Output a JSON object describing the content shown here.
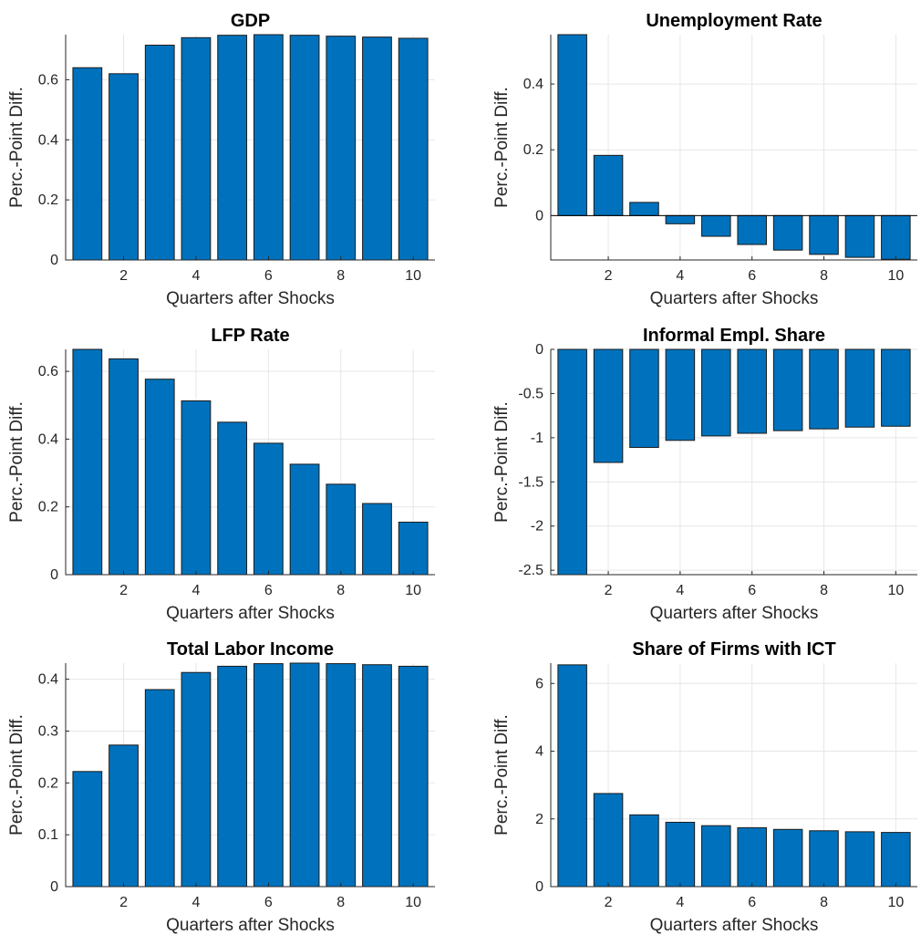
{
  "chart_data": [
    {
      "type": "bar",
      "title": "GDP",
      "xlabel": "Quarters after Shocks",
      "ylabel": "Perc.-Point Diff.",
      "x": [
        1,
        2,
        3,
        4,
        5,
        6,
        7,
        8,
        9,
        10
      ],
      "values": [
        0.64,
        0.62,
        0.715,
        0.74,
        0.748,
        0.75,
        0.748,
        0.745,
        0.742,
        0.738
      ],
      "xlim": [
        0.4,
        10.6
      ],
      "ylim": [
        0,
        0.75
      ],
      "xticks": [
        2,
        4,
        6,
        8,
        10
      ],
      "yticks": [
        0,
        0.2,
        0.4,
        0.6
      ],
      "ytick_labels": [
        "0",
        "0.2",
        "0.4",
        "0.6"
      ],
      "grid": true,
      "bar_color": "#0072bd"
    },
    {
      "type": "bar",
      "title": "Unemployment Rate",
      "xlabel": "Quarters after Shocks",
      "ylabel": "Perc.-Point Diff.",
      "x": [
        1,
        2,
        3,
        4,
        5,
        6,
        7,
        8,
        9,
        10
      ],
      "values": [
        0.55,
        0.183,
        0.04,
        -0.025,
        -0.063,
        -0.088,
        -0.105,
        -0.118,
        -0.127,
        -0.133
      ],
      "xlim": [
        0.4,
        10.6
      ],
      "ylim": [
        -0.135,
        0.55
      ],
      "xticks": [
        2,
        4,
        6,
        8,
        10
      ],
      "yticks": [
        0,
        0.2,
        0.4
      ],
      "ytick_labels": [
        "0",
        "0.2",
        "0.4"
      ],
      "grid": true,
      "bar_color": "#0072bd"
    },
    {
      "type": "bar",
      "title": "LFP Rate",
      "xlabel": "Quarters after Shocks",
      "ylabel": "Perc.-Point Diff.",
      "x": [
        1,
        2,
        3,
        4,
        5,
        6,
        7,
        8,
        9,
        10
      ],
      "values": [
        0.665,
        0.637,
        0.577,
        0.513,
        0.45,
        0.388,
        0.326,
        0.267,
        0.21,
        0.155
      ],
      "xlim": [
        0.4,
        10.6
      ],
      "ylim": [
        0,
        0.665
      ],
      "xticks": [
        2,
        4,
        6,
        8,
        10
      ],
      "yticks": [
        0,
        0.2,
        0.4,
        0.6
      ],
      "ytick_labels": [
        "0",
        "0.2",
        "0.4",
        "0.6"
      ],
      "grid": true,
      "bar_color": "#0072bd"
    },
    {
      "type": "bar",
      "title": "Informal Empl. Share",
      "xlabel": "Quarters after Shocks",
      "ylabel": "Perc.-Point Diff.",
      "x": [
        1,
        2,
        3,
        4,
        5,
        6,
        7,
        8,
        9,
        10
      ],
      "values": [
        -2.55,
        -1.28,
        -1.11,
        -1.03,
        -0.98,
        -0.95,
        -0.92,
        -0.9,
        -0.88,
        -0.87
      ],
      "xlim": [
        0.4,
        10.6
      ],
      "ylim": [
        -2.55,
        0
      ],
      "xticks": [
        2,
        4,
        6,
        8,
        10
      ],
      "yticks": [
        -2.5,
        -2,
        -1.5,
        -1,
        -0.5,
        0
      ],
      "ytick_labels": [
        "-2.5",
        "-2",
        "-1.5",
        "-1",
        "-0.5",
        "0"
      ],
      "grid": true,
      "bar_color": "#0072bd"
    },
    {
      "type": "bar",
      "title": "Total Labor Income",
      "xlabel": "Quarters after Shocks",
      "ylabel": "Perc.-Point Diff.",
      "x": [
        1,
        2,
        3,
        4,
        5,
        6,
        7,
        8,
        9,
        10
      ],
      "values": [
        0.222,
        0.273,
        0.38,
        0.413,
        0.425,
        0.43,
        0.431,
        0.43,
        0.428,
        0.425
      ],
      "xlim": [
        0.4,
        10.6
      ],
      "ylim": [
        0,
        0.431
      ],
      "xticks": [
        2,
        4,
        6,
        8,
        10
      ],
      "yticks": [
        0,
        0.1,
        0.2,
        0.3,
        0.4
      ],
      "ytick_labels": [
        "0",
        "0.1",
        "0.2",
        "0.3",
        "0.4"
      ],
      "grid": true,
      "bar_color": "#0072bd"
    },
    {
      "type": "bar",
      "title": "Share of Firms with ICT",
      "xlabel": "Quarters after Shocks",
      "ylabel": "Perc.-Point Diff.",
      "x": [
        1,
        2,
        3,
        4,
        5,
        6,
        7,
        8,
        9,
        10
      ],
      "values": [
        6.55,
        2.75,
        2.12,
        1.9,
        1.8,
        1.74,
        1.69,
        1.65,
        1.62,
        1.6
      ],
      "xlim": [
        0.4,
        10.6
      ],
      "ylim": [
        0,
        6.6
      ],
      "xticks": [
        2,
        4,
        6,
        8,
        10
      ],
      "yticks": [
        0,
        2,
        4,
        6
      ],
      "ytick_labels": [
        "0",
        "2",
        "4",
        "6"
      ],
      "grid": true,
      "bar_color": "#0072bd"
    }
  ]
}
